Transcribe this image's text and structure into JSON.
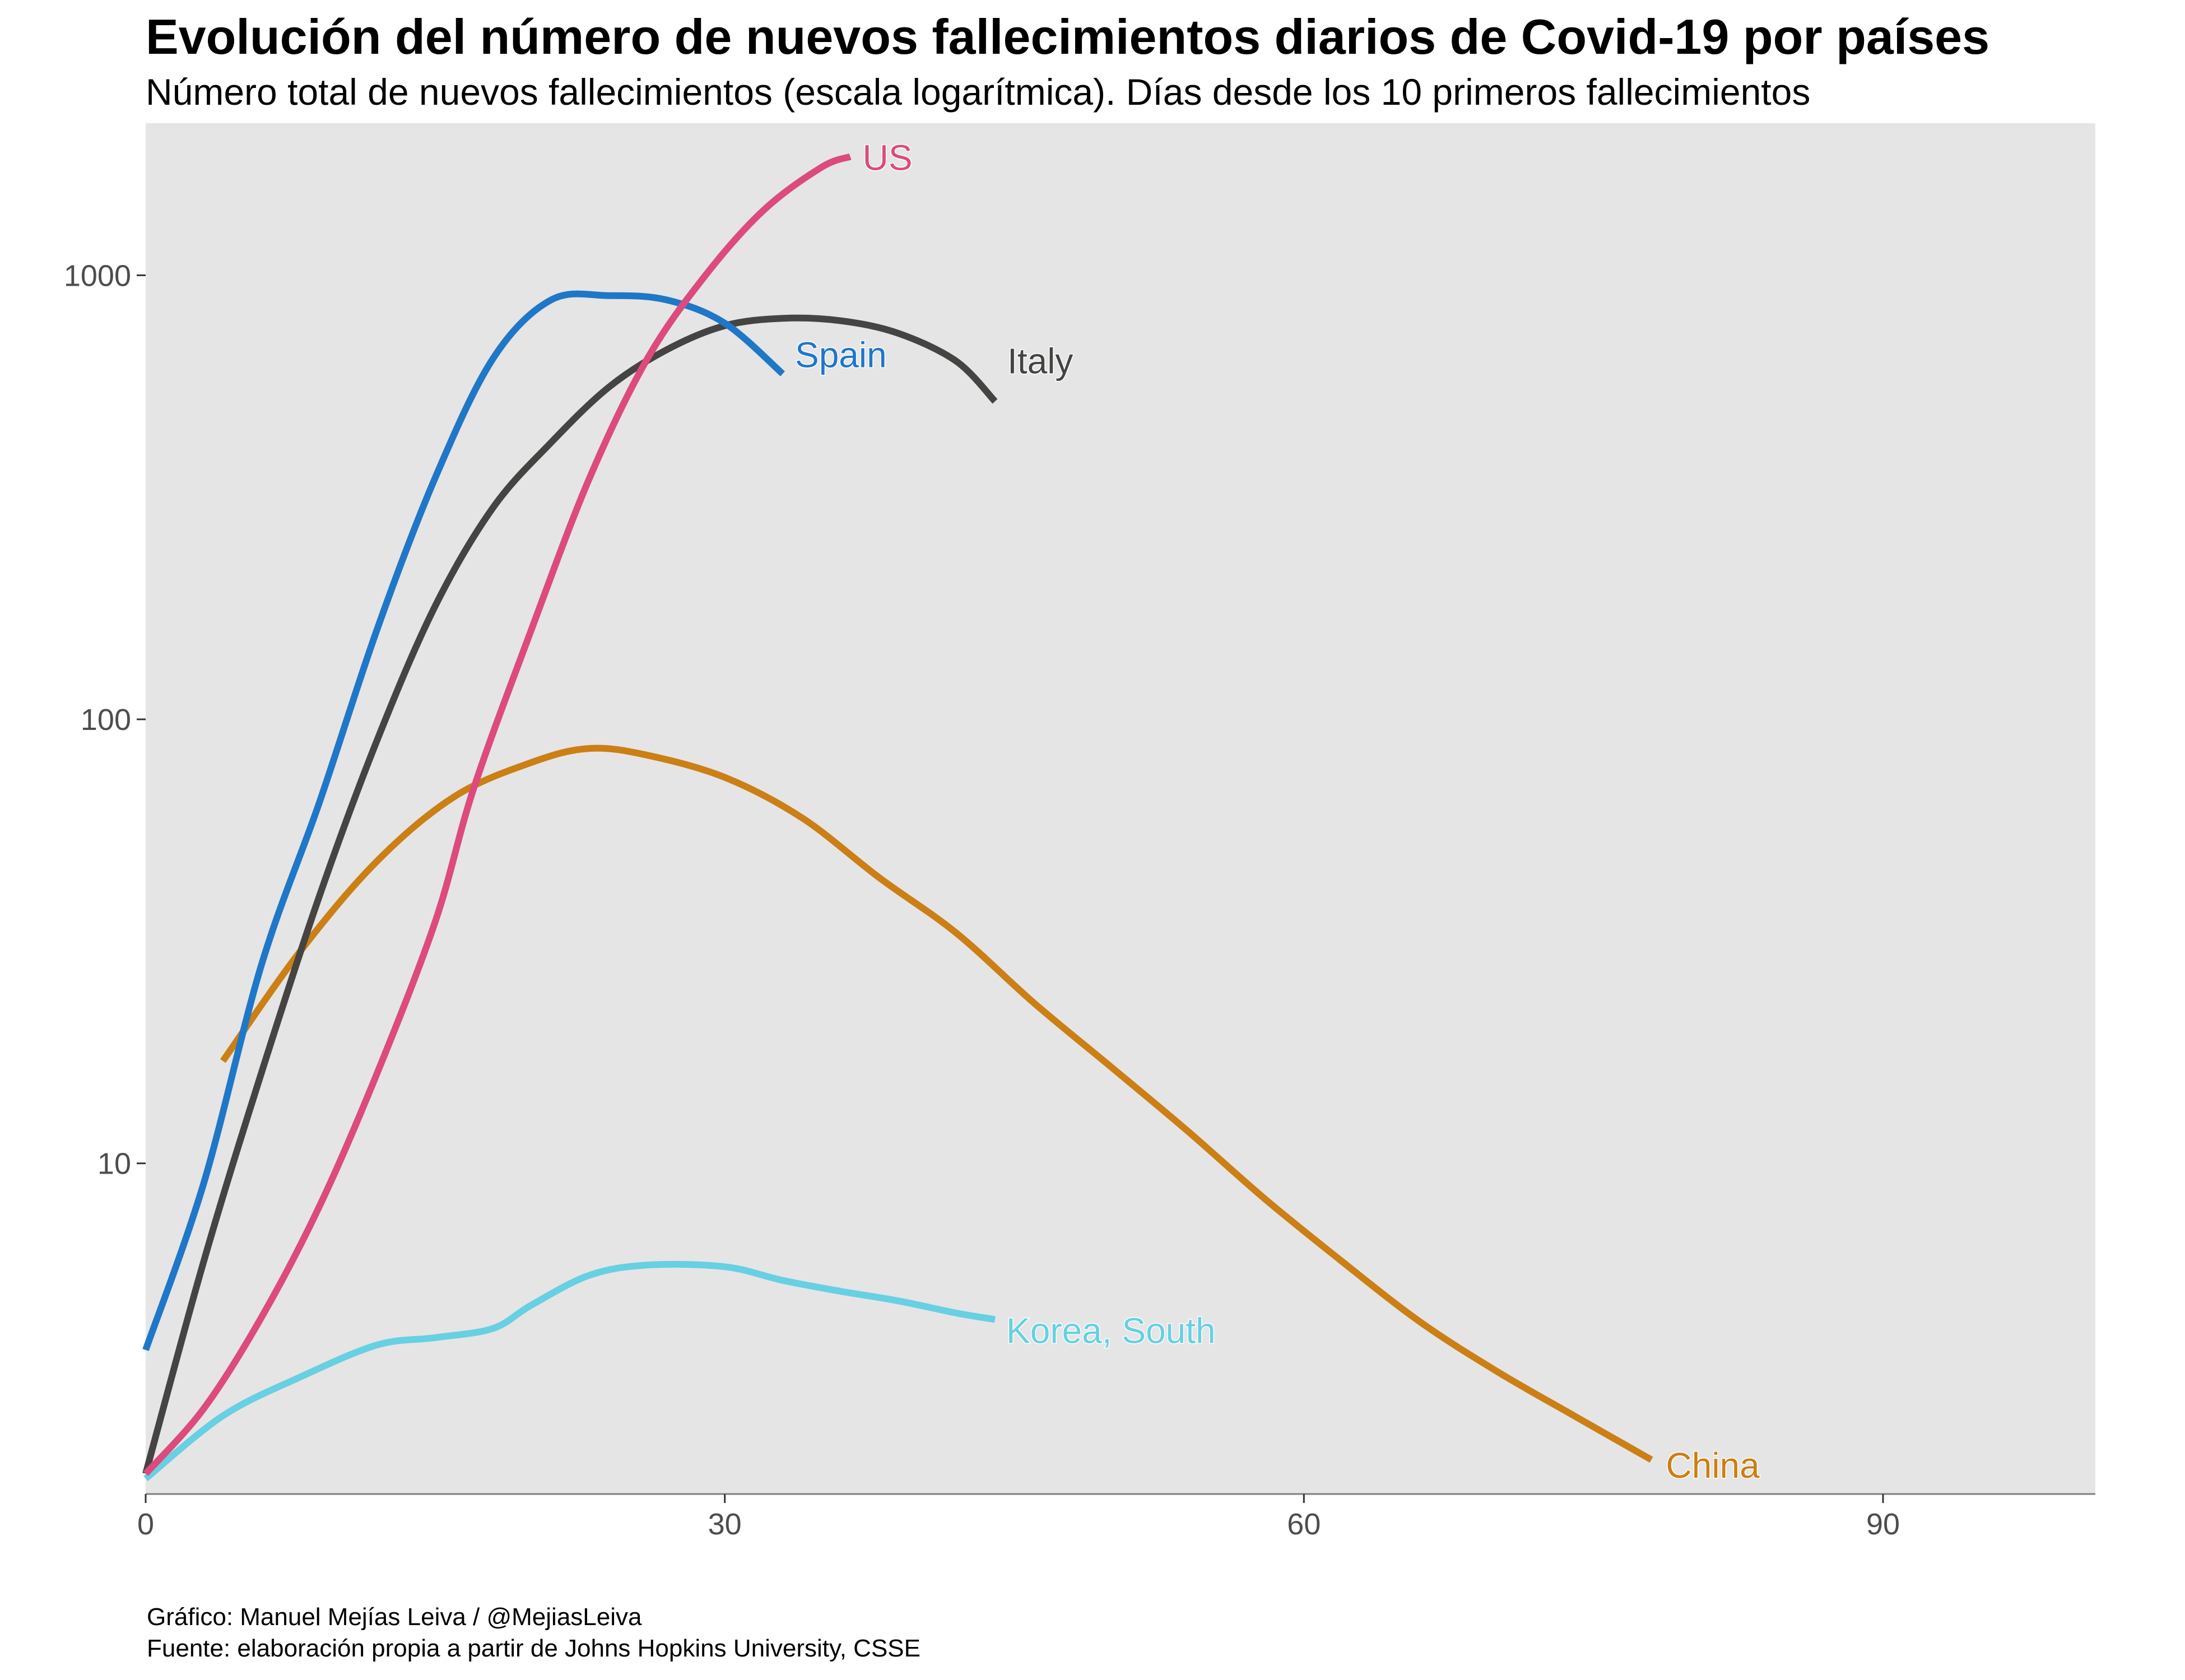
{
  "chart_data": {
    "type": "line",
    "title": "Evolución del número de nuevos fallecimientos diarios de Covid-19 por países",
    "subtitle": "Número total de nuevos fallecimientos (escala logarítmica). Días desde los 10 primeros fallecimientos",
    "xlabel": "",
    "ylabel": "",
    "xlim": [
      0,
      101
    ],
    "ylim": [
      1.8,
      2200
    ],
    "yscale": "log",
    "grid": false,
    "legend": "none (direct labels at line ends)",
    "x_ticks": [
      "0",
      "30",
      "60",
      "90"
    ],
    "x_tick_values": [
      0,
      30,
      60,
      90
    ],
    "y_ticks": [
      "10",
      "100",
      "1000"
    ],
    "y_tick_values": [
      10,
      100,
      1000
    ],
    "series": [
      {
        "name": "US",
        "color": "#dc4a7e",
        "points": [
          [
            0,
            2
          ],
          [
            3,
            2.8
          ],
          [
            6,
            4.5
          ],
          [
            9,
            8
          ],
          [
            12,
            16
          ],
          [
            15,
            35
          ],
          [
            17,
            70
          ],
          [
            20,
            160
          ],
          [
            23,
            350
          ],
          [
            26,
            650
          ],
          [
            29,
            1000
          ],
          [
            32,
            1400
          ],
          [
            35,
            1750
          ],
          [
            36.5,
            1850
          ]
        ]
      },
      {
        "name": "Spain",
        "color": "#1f77c8",
        "points": [
          [
            0,
            3.8
          ],
          [
            3,
            9
          ],
          [
            6,
            28
          ],
          [
            9,
            65
          ],
          [
            12,
            160
          ],
          [
            15,
            350
          ],
          [
            18,
            650
          ],
          [
            21,
            880
          ],
          [
            24,
            900
          ],
          [
            27,
            880
          ],
          [
            30,
            780
          ],
          [
            33,
            600
          ]
        ]
      },
      {
        "name": "Italy",
        "color": "#454443",
        "points": [
          [
            0,
            2
          ],
          [
            3,
            6
          ],
          [
            6,
            16
          ],
          [
            9,
            40
          ],
          [
            12,
            90
          ],
          [
            15,
            180
          ],
          [
            18,
            300
          ],
          [
            21,
            420
          ],
          [
            24,
            560
          ],
          [
            27,
            680
          ],
          [
            30,
            770
          ],
          [
            33,
            800
          ],
          [
            36,
            790
          ],
          [
            39,
            740
          ],
          [
            42,
            640
          ],
          [
            44,
            520
          ]
        ]
      },
      {
        "name": "China",
        "color": "#cb7f14",
        "points": [
          [
            4,
            17
          ],
          [
            8,
            30
          ],
          [
            12,
            48
          ],
          [
            16,
            67
          ],
          [
            20,
            80
          ],
          [
            23,
            86
          ],
          [
            26,
            83
          ],
          [
            30,
            74
          ],
          [
            34,
            60
          ],
          [
            38,
            44
          ],
          [
            42,
            33
          ],
          [
            46,
            23
          ],
          [
            50,
            16.5
          ],
          [
            54,
            11.8
          ],
          [
            58,
            8.3
          ],
          [
            62,
            6
          ],
          [
            66,
            4.4
          ],
          [
            70,
            3.4
          ],
          [
            74,
            2.7
          ],
          [
            78,
            2.15
          ]
        ]
      },
      {
        "name": "Korea, South",
        "color": "#67d0e2",
        "points": [
          [
            0,
            1.95
          ],
          [
            4,
            2.7
          ],
          [
            8,
            3.3
          ],
          [
            12,
            3.9
          ],
          [
            15,
            4.05
          ],
          [
            18,
            4.25
          ],
          [
            20,
            4.8
          ],
          [
            23,
            5.6
          ],
          [
            26,
            5.9
          ],
          [
            30,
            5.85
          ],
          [
            33,
            5.45
          ],
          [
            36,
            5.15
          ],
          [
            39,
            4.9
          ],
          [
            42,
            4.6
          ],
          [
            44,
            4.45
          ]
        ]
      }
    ]
  },
  "caption": {
    "line1": "Gráfico: Manuel Mejías Leiva / @MejiasLeiva",
    "line2": "Fuente: elaboración propia a partir de Johns Hopkins University, CSSE"
  }
}
